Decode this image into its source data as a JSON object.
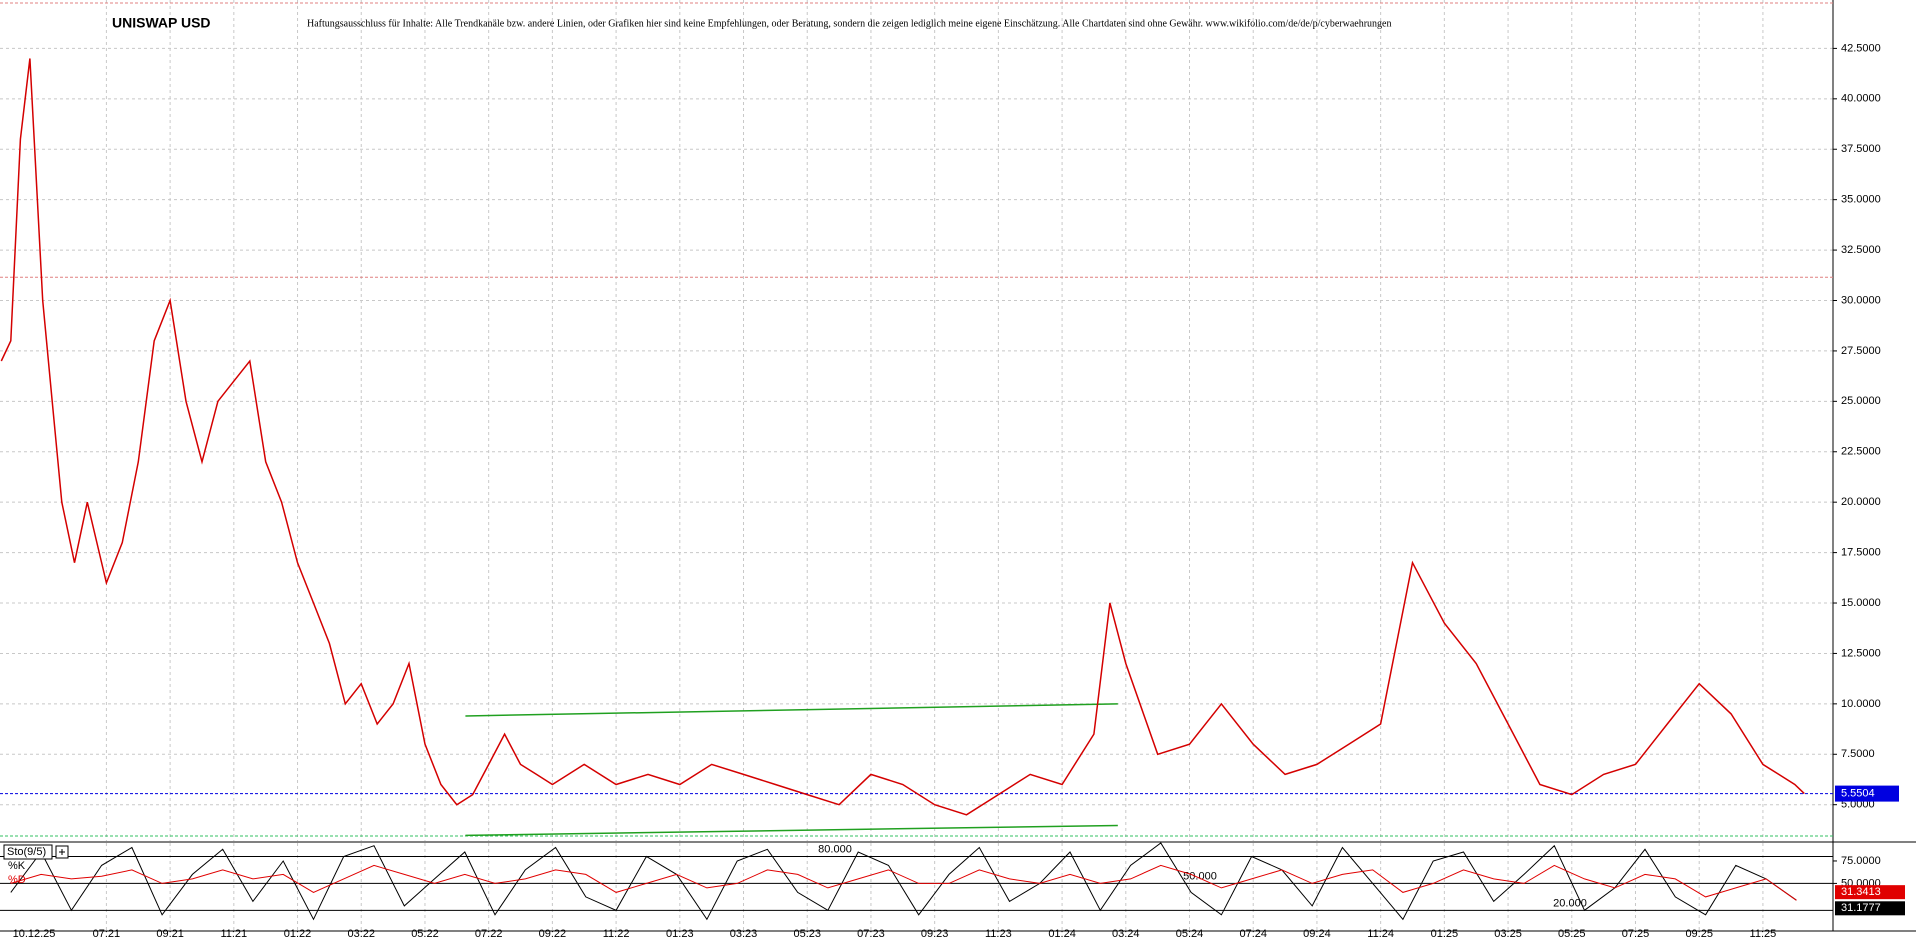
{
  "chart_data": {
    "type": "line",
    "title": "UNISWAP USD",
    "subtitle": "Haftungsausschluss für Inhalte: Alle Trendkanäle bzw. andere Linien, oder Grafiken hier sind keine Empfehlungen, oder Beratung, sondern die zeigen lediglich meine eigene Einschätzung. Alle Chartdaten sind ohne Gewähr.  www.wikifolio.com/de/de/p/cyberwaehrungen",
    "date_label": "10.12.25",
    "xlim": [
      2.66,
      60.2
    ],
    "xticks": [
      {
        "value": 6,
        "label": "07:21"
      },
      {
        "value": 8,
        "label": "09:21"
      },
      {
        "value": 10,
        "label": "11:21"
      },
      {
        "value": 12,
        "label": "01:22"
      },
      {
        "value": 14,
        "label": "03:22"
      },
      {
        "value": 16,
        "label": "05:22"
      },
      {
        "value": 18,
        "label": "07:22"
      },
      {
        "value": 20,
        "label": "09:22"
      },
      {
        "value": 22,
        "label": "11:22"
      },
      {
        "value": 24,
        "label": "01:23"
      },
      {
        "value": 26,
        "label": "03:23"
      },
      {
        "value": 28,
        "label": "05:23"
      },
      {
        "value": 30,
        "label": "07:23"
      },
      {
        "value": 32,
        "label": "09:23"
      },
      {
        "value": 34,
        "label": "11:23"
      },
      {
        "value": 36,
        "label": "01:24"
      },
      {
        "value": 38,
        "label": "03:24"
      },
      {
        "value": 40,
        "label": "05:24"
      },
      {
        "value": 42,
        "label": "07:24"
      },
      {
        "value": 44,
        "label": "09:24"
      },
      {
        "value": 46,
        "label": "11:24"
      },
      {
        "value": 48,
        "label": "01:25"
      },
      {
        "value": 50,
        "label": "03:25"
      },
      {
        "value": 52,
        "label": "05:25"
      },
      {
        "value": 54,
        "label": "07:25"
      },
      {
        "value": 56,
        "label": "09:25"
      },
      {
        "value": 58,
        "label": "11:25"
      }
    ],
    "ylim": [
      3.2,
      44.9
    ],
    "yticks": [
      {
        "value": 5,
        "label": "5.0000"
      },
      {
        "value": 7.5,
        "label": "7.5000"
      },
      {
        "value": 10,
        "label": "10.0000"
      },
      {
        "value": 12.5,
        "label": "12.5000"
      },
      {
        "value": 15,
        "label": "15.0000"
      },
      {
        "value": 17.5,
        "label": "17.5000"
      },
      {
        "value": 20,
        "label": "20.0000"
      },
      {
        "value": 22.5,
        "label": "22.5000"
      },
      {
        "value": 25,
        "label": "25.0000"
      },
      {
        "value": 27.5,
        "label": "27.5000"
      },
      {
        "value": 30,
        "label": "30.0000"
      },
      {
        "value": 32.5,
        "label": "32.5000"
      },
      {
        "value": 35,
        "label": "35.0000"
      },
      {
        "value": 37.5,
        "label": "37.5000"
      },
      {
        "value": 40,
        "label": "40.0000"
      },
      {
        "value": 42.5,
        "label": "42.5000"
      }
    ],
    "grid": true,
    "series": [
      {
        "color": "#d40000",
        "x": [
          2.7,
          3,
          3.3,
          3.6,
          4,
          4.3,
          4.6,
          5,
          5.4,
          6,
          6.5,
          7,
          7.5,
          8,
          8.5,
          9,
          9.5,
          10,
          10.5,
          11,
          11.5,
          12,
          12.5,
          13,
          13.5,
          14,
          14.5,
          15,
          15.5,
          16,
          16.5,
          17,
          17.5,
          18,
          18.5,
          19,
          19.5,
          20,
          21,
          22,
          23,
          24,
          25,
          26,
          27,
          28,
          29,
          30,
          31,
          32,
          33,
          34,
          35,
          36,
          37,
          37.5,
          38,
          39,
          40,
          41,
          42,
          43,
          44,
          45,
          46,
          47,
          48,
          49,
          50,
          51,
          52,
          53,
          54,
          55,
          56,
          57,
          58,
          59,
          59.3
        ],
        "values": [
          27,
          28,
          38,
          42,
          30,
          25,
          20,
          17,
          20,
          16,
          18,
          22,
          28,
          30,
          25,
          22,
          25,
          26,
          27,
          22,
          20,
          17,
          15,
          13,
          10,
          11,
          9,
          10,
          12,
          8,
          6,
          5,
          5.5,
          7,
          8.5,
          7,
          6.5,
          6,
          7,
          6,
          6.5,
          6,
          7,
          6.5,
          6,
          5.5,
          5,
          6.5,
          6,
          5,
          4.5,
          5.5,
          6.5,
          6,
          8.5,
          15,
          12,
          7.5,
          8,
          10,
          8,
          6.5,
          7,
          8,
          9,
          17,
          14,
          12,
          9,
          6,
          5.5,
          6.5,
          7,
          9,
          11,
          9.5,
          7,
          6,
          5.5504
        ]
      }
    ],
    "hlines": [
      {
        "value": 5.5504,
        "color": "#0000e0"
      },
      {
        "value": 31.15,
        "color": "#e08080"
      },
      {
        "value": 44.75,
        "color": "#e08080"
      },
      {
        "value": 3.45,
        "color": "#30c060"
      }
    ],
    "trendlines": [
      {
        "color": "#20a020",
        "x": [
          17.27,
          37.75
        ],
        "y": [
          9.4,
          10.0
        ]
      },
      {
        "color": "#20a020",
        "x": [
          17.27,
          37.75
        ],
        "y": [
          3.48,
          3.97
        ]
      }
    ],
    "indicator": {
      "title": "Sto(9/5)",
      "ylim": [
        -3,
        95
      ],
      "yticks": [
        {
          "value": 75,
          "label": "75.0000"
        },
        {
          "value": 50,
          "label": "50.0000"
        }
      ],
      "levels": [
        {
          "value": 80,
          "label": "80.000"
        },
        {
          "value": 50,
          "label": "50.000"
        },
        {
          "value": 20,
          "label": "20.000"
        }
      ],
      "x": [
        3,
        3.95,
        4.9,
        5.85,
        6.8,
        7.75,
        8.7,
        9.65,
        10.6,
        11.55,
        12.5,
        13.45,
        14.4,
        15.35,
        16.3,
        17.25,
        18.2,
        19.15,
        20.1,
        21.05,
        22,
        22.95,
        23.9,
        24.85,
        25.8,
        26.75,
        27.7,
        28.65,
        29.6,
        30.55,
        31.5,
        32.45,
        33.4,
        34.35,
        35.3,
        36.25,
        37.2,
        38.15,
        39.1,
        40.05,
        41,
        41.95,
        42.9,
        43.85,
        44.8,
        45.75,
        46.7,
        47.65,
        48.6,
        49.55,
        50.5,
        51.45,
        52.4,
        53.35,
        54.3,
        55.25,
        56.2,
        57.15,
        58.1,
        59.05
      ],
      "series": [
        {
          "name": "%K",
          "color": "#000000",
          "values": [
            40,
            85,
            20,
            70,
            90,
            15,
            60,
            88,
            30,
            75,
            10,
            80,
            92,
            25,
            55,
            85,
            15,
            65,
            90,
            35,
            20,
            80,
            60,
            10,
            75,
            88,
            40,
            20,
            85,
            70,
            15,
            60,
            90,
            30,
            50,
            85,
            20,
            70,
            95,
            40,
            15,
            80,
            65,
            25,
            90,
            50,
            10,
            75,
            85,
            30,
            60,
            92,
            20,
            45,
            88,
            35,
            15,
            70,
            55,
            31.3413
          ]
        },
        {
          "name": "%D",
          "color": "#e00000",
          "values": [
            50,
            60,
            55,
            58,
            65,
            50,
            55,
            65,
            55,
            60,
            40,
            55,
            70,
            60,
            50,
            60,
            50,
            55,
            65,
            60,
            40,
            50,
            60,
            45,
            50,
            65,
            60,
            45,
            55,
            65,
            50,
            50,
            65,
            55,
            50,
            60,
            50,
            55,
            70,
            60,
            45,
            55,
            65,
            50,
            60,
            65,
            40,
            50,
            65,
            55,
            50,
            70,
            55,
            45,
            60,
            55,
            35,
            45,
            55,
            31.1777
          ]
        }
      ]
    }
  }
}
